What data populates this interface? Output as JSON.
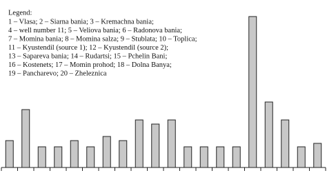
{
  "chart_data": {
    "type": "bar",
    "legend_title": "Legend:",
    "legend_lines": [
      "1 – Vlasa; 2 – Siarna bania;  3 – Kremachna   bania;",
      "4 – well number 11; 5 – Veliova  bania; 6 – Radonova bania;",
      "7 – Momina bania; 8 – Momina salza; 9 – Stublata; 10 – Toplica;",
      "11 – Kyustendil (source 1); 12 – Kyustendil (source 2);",
      "13 – Sapareva bania; 14 – Rudartsi; 15 – Pchelin Bani;",
      "16 – Kostenets; 17 – Momin prohod; 18 – Dolna Banya;",
      "19 – Pancharevo; 20 – Zheleznica"
    ],
    "categories": [
      null,
      null,
      null,
      null,
      null,
      null,
      null,
      null,
      null,
      null,
      null,
      null,
      null,
      null,
      null,
      null,
      null,
      null,
      null,
      null
    ],
    "values": [
      39,
      84,
      30,
      30,
      39,
      30,
      45,
      39,
      69,
      63,
      69,
      30,
      30,
      30,
      30,
      219,
      95,
      69,
      30,
      35
    ],
    "color": "#c8c8c8",
    "ylim": [
      0,
      230
    ]
  }
}
